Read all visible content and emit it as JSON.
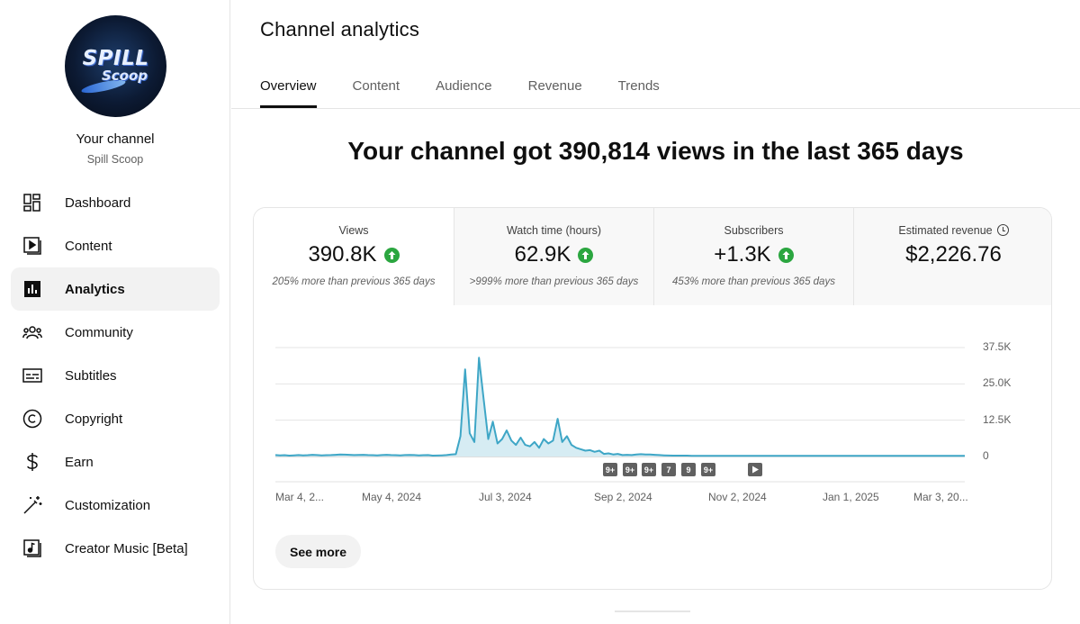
{
  "sidebar": {
    "avatar_logo_line1": "SPILL",
    "avatar_logo_line2": "Scoop",
    "channel_title": "Your channel",
    "channel_name": "Spill Scoop",
    "items": [
      {
        "label": "Dashboard",
        "icon": "dashboard-icon"
      },
      {
        "label": "Content",
        "icon": "content-icon"
      },
      {
        "label": "Analytics",
        "icon": "analytics-icon",
        "active": true
      },
      {
        "label": "Community",
        "icon": "community-icon"
      },
      {
        "label": "Subtitles",
        "icon": "subtitles-icon"
      },
      {
        "label": "Copyright",
        "icon": "copyright-icon"
      },
      {
        "label": "Earn",
        "icon": "earn-icon"
      },
      {
        "label": "Customization",
        "icon": "customization-icon"
      },
      {
        "label": "Creator Music [Beta]",
        "icon": "creator-music-icon"
      }
    ]
  },
  "main": {
    "title": "Channel analytics",
    "tabs": [
      {
        "label": "Overview",
        "active": true
      },
      {
        "label": "Content"
      },
      {
        "label": "Audience"
      },
      {
        "label": "Revenue"
      },
      {
        "label": "Trends"
      }
    ],
    "headline": "Your channel got 390,814 views in the last 365 days",
    "metrics": [
      {
        "label": "Views",
        "value": "390.8K",
        "trend": "up",
        "note": "205% more than previous 365 days"
      },
      {
        "label": "Watch time (hours)",
        "value": "62.9K",
        "trend": "up",
        "note": ">999% more than previous 365 days"
      },
      {
        "label": "Subscribers",
        "value": "+1.3K",
        "trend": "up",
        "note": "453% more than previous 365 days"
      },
      {
        "label": "Estimated revenue",
        "value": "$2,226.76",
        "icon": "clock-icon"
      }
    ],
    "see_more": "See more"
  },
  "colors": {
    "accent_line": "#3ea6c6",
    "area_fill": "#d6ecf3",
    "trend_up": "#2ba640"
  },
  "chart_data": {
    "type": "line",
    "series": [
      {
        "values": [
          500,
          400,
          450,
          300,
          400,
          500,
          400,
          450,
          600,
          500,
          400,
          450,
          500,
          600,
          700,
          650,
          600,
          500,
          550,
          600,
          500,
          450,
          400,
          500,
          600,
          500,
          450,
          400,
          500,
          550,
          500,
          400,
          450,
          500,
          300,
          350,
          400,
          500,
          700,
          800,
          7000,
          30000,
          8000,
          5000,
          34000,
          20000,
          6000,
          12000,
          4500,
          6000,
          9000,
          5500,
          4000,
          6500,
          4000,
          3500,
          5000,
          3000,
          6000,
          4500,
          5500,
          13000,
          5000,
          7000,
          4000,
          3000,
          2500,
          2000,
          2200,
          1600,
          2000,
          900,
          1100,
          700,
          900,
          500,
          600,
          500,
          700,
          800,
          700,
          700,
          600,
          500,
          400,
          350,
          300,
          300,
          300,
          300,
          250,
          250,
          250,
          250,
          250,
          250,
          250,
          250,
          250,
          250,
          250,
          250,
          250,
          250,
          250,
          250,
          250,
          250,
          250,
          250,
          250,
          250,
          250,
          250,
          250,
          250,
          250,
          250,
          250,
          250,
          250,
          250,
          250,
          250,
          250,
          250,
          250,
          250,
          250,
          250,
          250,
          250,
          250,
          250,
          250,
          250,
          250,
          250,
          250,
          250,
          250,
          250,
          250,
          250,
          250,
          250,
          250,
          250,
          250,
          250
        ]
      }
    ],
    "ylim": [
      0,
      37500
    ],
    "y_ticks": [
      "37.5K",
      "25.0K",
      "12.5K",
      "0"
    ],
    "x_ticks": [
      "Mar 4, 2...",
      "May 4, 2024",
      "Jul 3, 2024",
      "Sep 2, 2024",
      "Nov 2, 2024",
      "Jan 1, 2025",
      "Mar 3, 20..."
    ],
    "markers": [
      "9+",
      "9+",
      "9+",
      "7",
      "9",
      "9+"
    ],
    "grid": true
  }
}
